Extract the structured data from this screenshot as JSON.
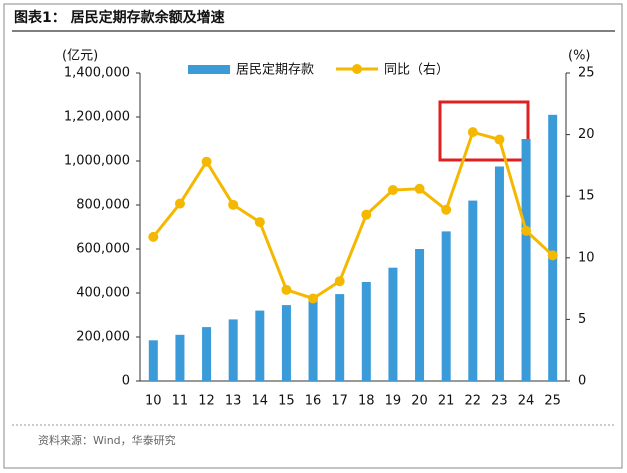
{
  "chart_data": {
    "type": "bar-line",
    "title": "图表1：  居民定期存款余额及增速",
    "y_label": "(亿元)",
    "y2_label": "(%)",
    "source": "资料来源：Wind，华泰研究",
    "categories": [
      "10",
      "11",
      "12",
      "13",
      "14",
      "15",
      "16",
      "17",
      "18",
      "19",
      "20",
      "21",
      "22",
      "23",
      "24",
      "25"
    ],
    "series": [
      {
        "name": "居民定期存款",
        "type": "bar",
        "color": "#3b9bd8",
        "values": [
          185000,
          210000,
          245000,
          280000,
          320000,
          345000,
          365000,
          395000,
          450000,
          515000,
          600000,
          680000,
          820000,
          975000,
          1100000,
          1210000
        ]
      },
      {
        "name": "同比（右）",
        "type": "line",
        "axis": "y2",
        "color": "#f5b800",
        "values": [
          11.7,
          14.4,
          17.8,
          14.3,
          12.9,
          7.4,
          6.7,
          8.1,
          13.5,
          15.5,
          15.6,
          13.9,
          20.2,
          19.6,
          12.2,
          10.2
        ]
      }
    ],
    "ylim": [
      0,
      1400000
    ],
    "yticks": [
      0,
      {
        "value": 200000,
        "label": "200,000"
      },
      {
        "value": 400000,
        "label": "400,000"
      },
      {
        "value": 600000,
        "label": "600,000"
      },
      {
        "value": 800000,
        "label": "800,000"
      },
      {
        "value": 1000000,
        "label": "1,000,000"
      },
      {
        "value": 1200000,
        "label": "1,200,000"
      },
      {
        "value": 1400000,
        "label": "1,400,000"
      }
    ],
    "y2lim": [
      0,
      25
    ],
    "y2ticks": [
      0,
      5,
      10,
      15,
      20,
      25
    ],
    "grid": false
  }
}
